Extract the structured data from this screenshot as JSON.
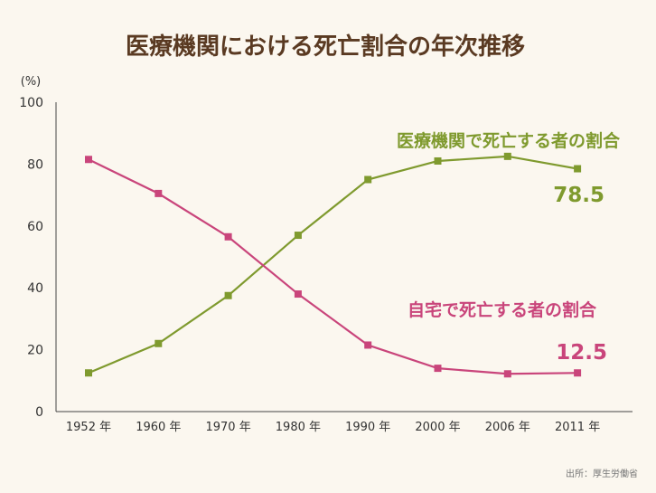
{
  "chart_data": {
    "type": "line",
    "title": "医療機関における死亡割合の年次推移",
    "unit_label": "(%)",
    "categories": [
      "1952 年",
      "1960 年",
      "1970 年",
      "1980 年",
      "1990 年",
      "2000 年",
      "2006 年",
      "2011 年"
    ],
    "ylim": [
      0,
      100
    ],
    "yticks": [
      0,
      20,
      40,
      60,
      80,
      100
    ],
    "grid": false,
    "series": [
      {
        "name": "医療機関で死亡する者の割合",
        "color": "#7f9a2e",
        "values": [
          12.5,
          22.0,
          37.5,
          57.0,
          75.0,
          81.0,
          82.5,
          78.5
        ],
        "end_label": "78.5"
      },
      {
        "name": "自宅で死亡する者の割合",
        "color": "#c9457b",
        "values": [
          81.5,
          70.5,
          56.5,
          38.0,
          21.5,
          14.0,
          12.2,
          12.5
        ],
        "end_label": "12.5"
      }
    ],
    "source": "出所：厚生労働省"
  }
}
